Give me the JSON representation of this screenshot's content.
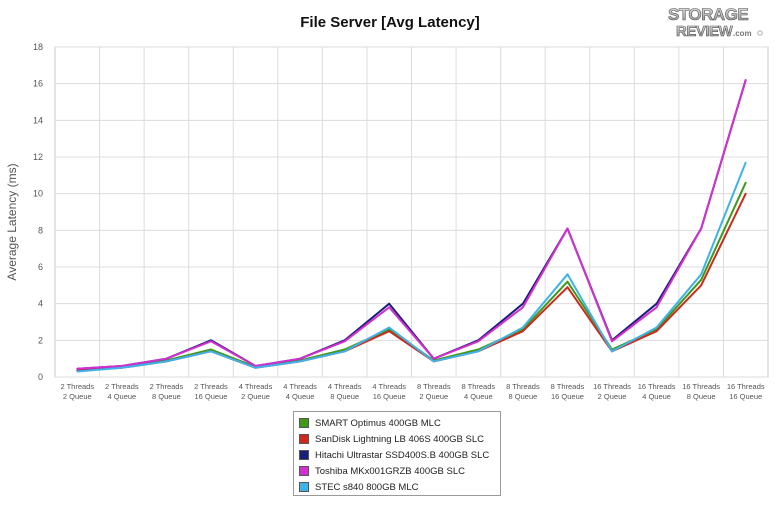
{
  "chart_data": {
    "type": "line",
    "title": "File Server [Avg Latency]",
    "ylabel": "Average Latency (ms)",
    "xlabel": "",
    "ylim": [
      0,
      18
    ],
    "yticks": [
      0,
      2,
      4,
      6,
      8,
      10,
      12,
      14,
      16,
      18
    ],
    "grid": true,
    "legend_position": "bottom",
    "categories": [
      [
        "2 Threads",
        "2 Queue"
      ],
      [
        "2 Threads",
        "4 Queue"
      ],
      [
        "2 Threads",
        "8 Queue"
      ],
      [
        "2 Threads",
        "16 Queue"
      ],
      [
        "4 Threads",
        "2 Queue"
      ],
      [
        "4 Threads",
        "4 Queue"
      ],
      [
        "4 Threads",
        "8 Queue"
      ],
      [
        "4 Threads",
        "16 Queue"
      ],
      [
        "8 Threads",
        "2 Queue"
      ],
      [
        "8 Threads",
        "4 Queue"
      ],
      [
        "8 Threads",
        "8 Queue"
      ],
      [
        "8 Threads",
        "16 Queue"
      ],
      [
        "16 Threads",
        "2 Queue"
      ],
      [
        "16 Threads",
        "4 Queue"
      ],
      [
        "16 Threads",
        "8 Queue"
      ],
      [
        "16 Threads",
        "16 Queue"
      ]
    ],
    "series": [
      {
        "name": "SMART Optimus 400GB MLC",
        "color": "#3f9a1a",
        "values": [
          0.35,
          0.55,
          0.9,
          1.5,
          0.55,
          0.9,
          1.5,
          2.6,
          0.9,
          1.5,
          2.6,
          5.2,
          1.5,
          2.6,
          5.3,
          10.6
        ]
      },
      {
        "name": "SanDisk Lightning LB 406S 400GB SLC",
        "color": "#cc2a1c",
        "values": [
          0.35,
          0.5,
          0.85,
          1.4,
          0.5,
          0.85,
          1.4,
          2.5,
          0.85,
          1.4,
          2.5,
          4.9,
          1.4,
          2.5,
          5.0,
          10.0
        ]
      },
      {
        "name": "Hitachi Ultrastar SSD400S.B 400GB SLC",
        "color": "#1a1f7a",
        "values": [
          0.45,
          0.6,
          1.0,
          2.0,
          0.6,
          1.0,
          2.0,
          4.0,
          1.0,
          2.0,
          4.0,
          8.1,
          2.0,
          4.0,
          8.1,
          16.2
        ]
      },
      {
        "name": "Toshiba MKx001GRZB 400GB SLC",
        "color": "#d12fcf",
        "values": [
          0.45,
          0.6,
          1.0,
          1.95,
          0.6,
          1.0,
          1.95,
          3.8,
          1.0,
          1.95,
          3.8,
          8.1,
          1.95,
          3.8,
          8.1,
          16.2
        ]
      },
      {
        "name": "STEC s840 800GB MLC",
        "color": "#3fb3e8",
        "values": [
          0.3,
          0.5,
          0.85,
          1.4,
          0.5,
          0.85,
          1.4,
          2.7,
          0.85,
          1.4,
          2.7,
          5.6,
          1.4,
          2.7,
          5.6,
          11.7
        ]
      }
    ]
  },
  "logo": {
    "line1": "STORAGE",
    "line2": "REVIEW",
    "suffix": ".com"
  }
}
